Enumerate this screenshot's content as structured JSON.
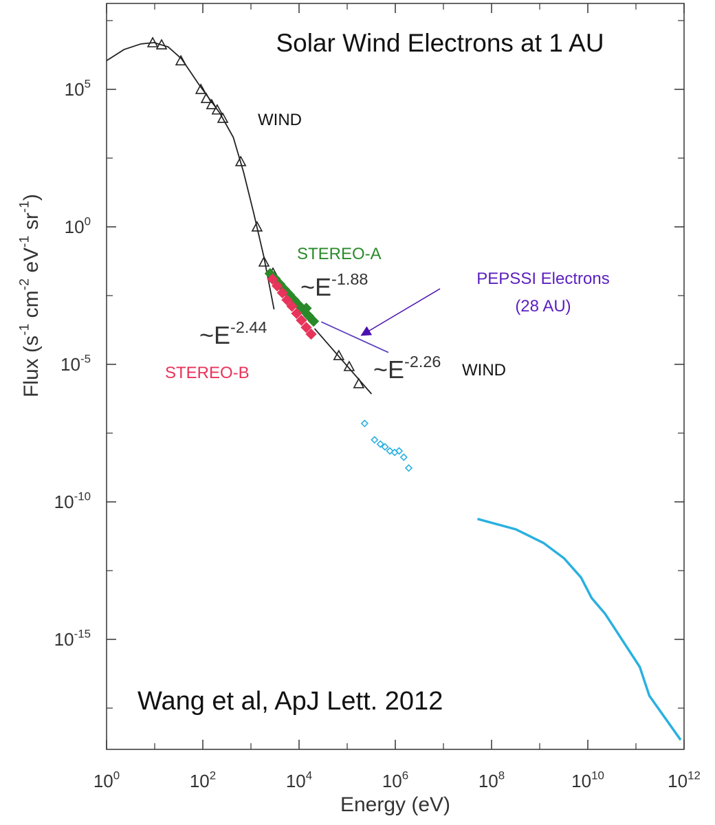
{
  "chart_data": {
    "type": "scatter",
    "title": "Solar Wind Electrons at 1 AU",
    "x_label": "Energy (eV)",
    "y_label": "Flux (s^-1 cm^-2 eV^-1 sr^-1)",
    "x_log": true,
    "y_log": true,
    "xlim": [
      1,
      1000000000000.0
    ],
    "ylim": [
      1e-19,
      133000000.0
    ],
    "xticks": [
      {
        "value": 1,
        "label": "10^0"
      },
      {
        "value": 100,
        "label": "10^2"
      },
      {
        "value": 10000,
        "label": "10^4"
      },
      {
        "value": 1000000,
        "label": "10^6"
      },
      {
        "value": 100000000,
        "label": "10^8"
      },
      {
        "value": 10000000000,
        "label": "10^10"
      },
      {
        "value": 1000000000000,
        "label": "10^12"
      }
    ],
    "yticks": [
      {
        "value": 100000,
        "label": "10^5"
      },
      {
        "value": 1,
        "label": "10^0"
      },
      {
        "value": 1e-05,
        "label": "10^-5"
      },
      {
        "value": 1e-10,
        "label": "10^-10"
      },
      {
        "value": 1e-15,
        "label": "10^-15"
      }
    ],
    "series": [
      {
        "color": "#222222",
        "marker": "triangle",
        "x": [
          9.1,
          13.9,
          35,
          91,
          118,
          153,
          199,
          260,
          614,
          1340,
          1870,
          2870,
          67000,
          110000,
          174000
        ],
        "values": [
          5000000.0,
          4200000.0,
          1100000.0,
          100000.0,
          47000.0,
          28000.0,
          18000.0,
          8900.0,
          237,
          1,
          0.053,
          0.021,
          2.1e-05,
          8.4e-06,
          2e-06
        ]
      },
      {
        "color": "#222222",
        "marker": "none",
        "x": [
          1,
          2.3,
          5.2,
          9.7,
          19,
          36,
          83,
          224,
          430,
          700,
          1140,
          1860,
          3020
        ],
        "values": [
          1100000.0,
          2800000.0,
          4500000.0,
          5000000.0,
          3500000.0,
          1300000.0,
          150000.0,
          14000.0,
          1800,
          100,
          3.2,
          0.08,
          0.001
        ]
      },
      {
        "color": "#222222",
        "marker": "none",
        "x": [
          21000,
          320000
        ],
        "values": [
          0.0002,
          8.4e-07
        ]
      },
      {
        "color": "#2a8a2a",
        "marker": "dot",
        "x": [
          2500,
          3200,
          4000,
          5000,
          6300,
          7900,
          10000,
          12600,
          15800,
          20000,
          3600,
          5600,
          8900,
          14100
        ],
        "values": [
          0.02,
          0.013,
          0.0083,
          0.0053,
          0.0034,
          0.0022,
          0.0014,
          0.0009,
          0.00058,
          0.00037,
          0.0075,
          0.0042,
          0.0017,
          0.0011
        ]
      },
      {
        "color": "#e8335a",
        "marker": "dot",
        "x": [
          2800,
          3500,
          4500,
          5600,
          7100,
          8900,
          11200,
          14100,
          17800
        ],
        "values": [
          0.0126,
          0.0071,
          0.004,
          0.0022,
          0.0013,
          0.00071,
          0.0004,
          0.00022,
          0.000126
        ]
      },
      {
        "color": "#5b3fbf",
        "marker": "none",
        "x": [
          29000,
          720000
        ],
        "values": [
          0.00035,
          2.7e-05
        ]
      },
      {
        "color": "#2ab0e0",
        "marker": "diamond",
        "x": [
          230000,
          370000,
          490000,
          610000,
          770000,
          970000,
          1200000,
          1500000,
          1900000
        ],
        "values": [
          7.1e-08,
          1.8e-08,
          1.26e-08,
          1e-08,
          7.1e-09,
          6.3e-09,
          7.1e-09,
          4.2e-09,
          1.7e-09
        ]
      },
      {
        "color": "#2ab0e0",
        "marker": "none",
        "x": [
          51000000.0,
          320000000.0,
          1200000000.0,
          3200000000.0,
          7200000000.0,
          12000000000.0,
          23000000000.0,
          120000000000.0,
          190000000000.0,
          850000000000.0
        ],
        "values": [
          2.4e-11,
          1e-11,
          3.2e-12,
          8.9e-13,
          1.8e-13,
          3.2e-14,
          8.4e-15,
          1e-16,
          8.9e-18,
          2.2e-19
        ]
      }
    ],
    "annotations": [
      {
        "text": "WIND",
        "color": "#111111"
      },
      {
        "text": "STEREO-A",
        "color": "#2a8a2a"
      },
      {
        "text": "~E^-1.88",
        "color": "#333333"
      },
      {
        "text": "PEPSSI Electrons",
        "color": "#5b1fbf"
      },
      {
        "text": "(28 AU)",
        "color": "#5b1fbf"
      },
      {
        "text": "~E^-2.44",
        "color": "#333333"
      },
      {
        "text": "STEREO-B",
        "color": "#e8335a"
      },
      {
        "text": "~E^-2.26",
        "color": "#333333"
      },
      {
        "text": "WIND",
        "color": "#111111"
      },
      {
        "text": "Wang et al, ApJ Lett. 2012",
        "color": "#111111"
      }
    ]
  }
}
